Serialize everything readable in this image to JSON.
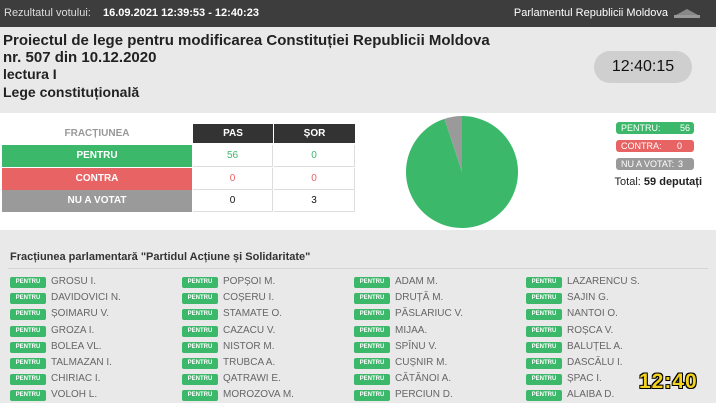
{
  "top_bar": {
    "label": "Rezultatul votului:",
    "datetime": "16.09.2021 12:39:53 - 12:40:23",
    "institution": "Parlamentul Republicii Moldova"
  },
  "header": {
    "title_lines": [
      "Proiectul de lege pentru modificarea Constituției Republicii Moldova",
      "nr. 507 din 10.12.2020",
      "lectura I",
      "Lege constituțională"
    ],
    "clock": "12:40:15"
  },
  "table": {
    "columns": [
      "FRACȚIUNEA",
      "PAS",
      "ȘOR"
    ],
    "rows": [
      [
        "PENTRU",
        56,
        0
      ],
      [
        "CONTRA",
        0,
        0
      ],
      [
        "NU A VOTAT",
        0,
        3
      ]
    ]
  },
  "summary": {
    "pentru_label": "PENTRU:",
    "pentru": 56,
    "contra_label": "CONTRA:",
    "contra": 0,
    "absent_label": "NU A VOTAT:",
    "absent": 3,
    "total_label": "Total:",
    "total": 59,
    "total_unit": "deputați"
  },
  "faction": {
    "title": "Fracțiunea parlamentară \"Partidul Acțiune și Solidaritate\"",
    "members": [
      {
        "vote": "PENTRU",
        "name": "GROSU I."
      },
      {
        "vote": "PENTRU",
        "name": "POPȘOI M."
      },
      {
        "vote": "PENTRU",
        "name": "ADAM M."
      },
      {
        "vote": "PENTRU",
        "name": "LAZARENCU S."
      },
      {
        "vote": "PENTRU",
        "name": "DAVIDOVICI N."
      },
      {
        "vote": "PENTRU",
        "name": "COȘERU I."
      },
      {
        "vote": "PENTRU",
        "name": "DRUȚĂ M."
      },
      {
        "vote": "PENTRU",
        "name": "SAJIN G."
      },
      {
        "vote": "PENTRU",
        "name": "ȘOIMARU V."
      },
      {
        "vote": "PENTRU",
        "name": "STAMATE O."
      },
      {
        "vote": "PENTRU",
        "name": "PĂSLARIUC V."
      },
      {
        "vote": "PENTRU",
        "name": "NANTOI O."
      },
      {
        "vote": "PENTRU",
        "name": "GROZA I."
      },
      {
        "vote": "PENTRU",
        "name": "CAZACU V."
      },
      {
        "vote": "PENTRU",
        "name": "MIJAA."
      },
      {
        "vote": "PENTRU",
        "name": "ROȘCA V."
      },
      {
        "vote": "PENTRU",
        "name": "BOLEA VL."
      },
      {
        "vote": "PENTRU",
        "name": "NISTOR M."
      },
      {
        "vote": "PENTRU",
        "name": "SPÎNU V."
      },
      {
        "vote": "PENTRU",
        "name": "BALUȚEL A."
      },
      {
        "vote": "PENTRU",
        "name": "TALMAZAN I."
      },
      {
        "vote": "PENTRU",
        "name": "TRUBCA A."
      },
      {
        "vote": "PENTRU",
        "name": "CUȘNIR M."
      },
      {
        "vote": "PENTRU",
        "name": "DASCĂLU I."
      },
      {
        "vote": "PENTRU",
        "name": "CHIRIAC I."
      },
      {
        "vote": "PENTRU",
        "name": "QATRAWI E."
      },
      {
        "vote": "PENTRU",
        "name": "CĂTĂNOI A."
      },
      {
        "vote": "PENTRU",
        "name": "ȘPAC I."
      },
      {
        "vote": "PENTRU",
        "name": "VOLOH L."
      },
      {
        "vote": "PENTRU",
        "name": "MOROZOVA M."
      },
      {
        "vote": "PENTRU",
        "name": "PERCIUN D."
      },
      {
        "vote": "PENTRU",
        "name": "ALAIBA D."
      }
    ]
  },
  "overlay_time": "12:40"
}
